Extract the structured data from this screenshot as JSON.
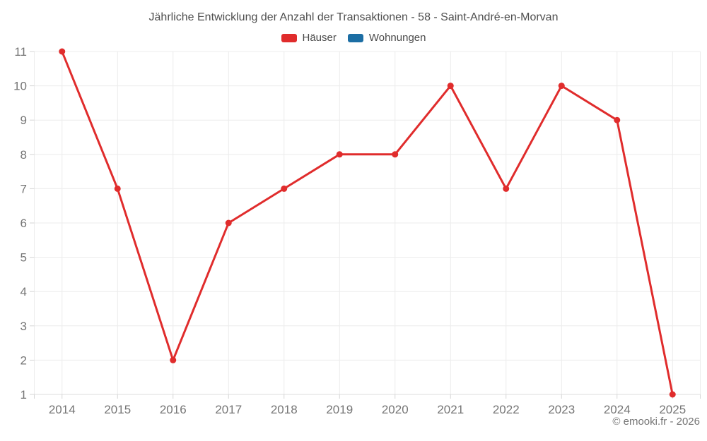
{
  "header": {
    "title": "Jährliche Entwicklung der Anzahl der Transaktionen - 58 - Saint-André-en-Morvan"
  },
  "footer": {
    "copyright": "© emooki.fr - 2026"
  },
  "chart_data": {
    "type": "line",
    "title": "Jährliche Entwicklung der Anzahl der Transaktionen - 58 - Saint-André-en-Morvan",
    "categories": [
      "2014",
      "2015",
      "2016",
      "2017",
      "2018",
      "2019",
      "2020",
      "2021",
      "2022",
      "2023",
      "2024",
      "2025"
    ],
    "series": [
      {
        "name": "Häuser",
        "color": "#e02c2c",
        "values": [
          11,
          7,
          2,
          6,
          7,
          8,
          8,
          10,
          7,
          10,
          9,
          1
        ]
      },
      {
        "name": "Wohnungen",
        "color": "#1c6ea4",
        "values": []
      }
    ],
    "xlabel": "",
    "ylabel": "",
    "ylim": [
      1,
      11
    ],
    "yticks": [
      1,
      2,
      3,
      4,
      5,
      6,
      7,
      8,
      9,
      10,
      11
    ],
    "grid": true,
    "legend_position": "top",
    "colors": {
      "background": "#ffffff",
      "grid": "#ececec",
      "axis_line": "#dcdcdc",
      "tick": "#d6d6d6",
      "tick_label": "#757575",
      "title": "#4f4f4f",
      "legend_text": "#4a4a4a"
    }
  }
}
